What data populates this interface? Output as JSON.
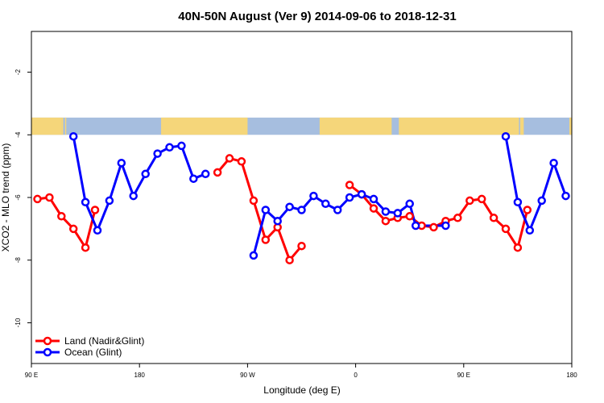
{
  "chart_data": {
    "type": "line",
    "title": "40N-50N August (Ver 9)   2014-09-06 to 2018-12-31",
    "xlabel": "Longitude (deg E)",
    "ylabel": "XCO2 - MLO trend (ppm)",
    "x_tick_labels": [
      "90 E",
      "180",
      "90 W",
      "0",
      "90 E",
      "180"
    ],
    "x_tick_values": [
      90,
      180,
      270,
      360,
      450,
      540
    ],
    "xlim": [
      90,
      540
    ],
    "y_tick_values": [
      -10,
      -8,
      -6,
      -4,
      -2
    ],
    "y_tick_labels": [
      "-10",
      "-8",
      "-6",
      "-4",
      "-2"
    ],
    "ylim": [
      -11.3,
      -0.7
    ],
    "grid": false,
    "legend_position": "bottom-left",
    "map_strip": {
      "y_top": -3.45,
      "y_bottom": -4.0,
      "land_color": "#f5d67a",
      "ocean_color": "#a6bedf"
    },
    "series": [
      {
        "name": "Land (Nadir&Glint)",
        "color": "#ff0000",
        "segments": [
          [
            [
              95,
              -6.05
            ],
            [
              105,
              -6.0
            ],
            [
              115,
              -6.6
            ],
            [
              125,
              -7.0
            ],
            [
              135,
              -7.6
            ],
            [
              143,
              -6.4
            ]
          ],
          [
            [
              245,
              -5.2
            ],
            [
              255,
              -4.75
            ],
            [
              265,
              -4.85
            ],
            [
              275,
              -6.1
            ],
            [
              285,
              -7.35
            ],
            [
              295,
              -6.95
            ],
            [
              305,
              -8.0
            ],
            [
              315,
              -7.55
            ]
          ],
          [
            [
              355,
              -5.6
            ],
            [
              365,
              -5.9
            ],
            [
              375,
              -6.35
            ],
            [
              385,
              -6.75
            ],
            [
              395,
              -6.65
            ],
            [
              405,
              -6.6
            ],
            [
              415,
              -6.9
            ],
            [
              425,
              -6.95
            ],
            [
              435,
              -6.75
            ],
            [
              445,
              -6.65
            ],
            [
              455,
              -6.1
            ],
            [
              465,
              -6.05
            ],
            [
              475,
              -6.65
            ],
            [
              485,
              -7.0
            ],
            [
              495,
              -7.6
            ],
            [
              503,
              -6.4
            ]
          ]
        ]
      },
      {
        "name": "Ocean (Glint)",
        "color": "#0000ff",
        "segments": [
          [
            [
              125,
              -4.05
            ],
            [
              135,
              -6.15
            ],
            [
              145,
              -7.05
            ],
            [
              155,
              -6.1
            ],
            [
              165,
              -4.9
            ],
            [
              175,
              -5.95
            ],
            [
              185,
              -5.25
            ],
            [
              195,
              -4.6
            ],
            [
              205,
              -4.4
            ],
            [
              215,
              -4.35
            ],
            [
              225,
              -5.4
            ],
            [
              235,
              -5.25
            ]
          ],
          [
            [
              275,
              -7.85
            ],
            [
              285,
              -6.4
            ],
            [
              295,
              -6.75
            ],
            [
              305,
              -6.3
            ],
            [
              315,
              -6.4
            ],
            [
              325,
              -5.95
            ],
            [
              335,
              -6.2
            ],
            [
              345,
              -6.4
            ],
            [
              355,
              -6.0
            ],
            [
              365,
              -5.9
            ],
            [
              375,
              -6.05
            ],
            [
              385,
              -6.45
            ],
            [
              395,
              -6.5
            ],
            [
              405,
              -6.2
            ],
            [
              410,
              -6.9
            ],
            [
              435,
              -6.9
            ]
          ],
          [
            [
              485,
              -4.05
            ],
            [
              495,
              -6.15
            ],
            [
              505,
              -7.05
            ],
            [
              515,
              -6.1
            ],
            [
              525,
              -4.9
            ],
            [
              535,
              -5.95
            ]
          ]
        ]
      }
    ]
  }
}
